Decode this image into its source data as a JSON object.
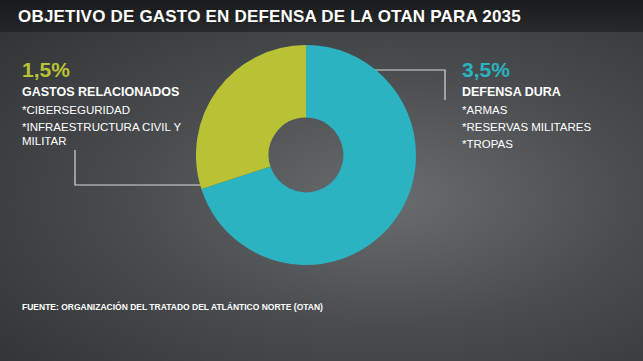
{
  "chart_data": {
    "type": "doughnut",
    "title": "OBJETIVO DE GASTO EN DEFENSA DE LA OTAN PARA 2035",
    "categories": [
      "DEFENSA DURA",
      "GASTOS RELACIONADOS"
    ],
    "values": [
      3.5,
      1.5
    ],
    "value_labels": [
      "3,5%",
      "1,5%"
    ],
    "colors": [
      "#2bb3c1",
      "#b9c234"
    ],
    "items": [
      [
        "*ARMAS",
        "*RESERVAS MILITARES",
        "*TROPAS"
      ],
      [
        "*CIBERSEGURIDAD",
        "*INFRAESTRUCTURA CIVIL Y MILITAR"
      ]
    ],
    "data_labels": true,
    "source": "FUENTE: ORGANIZACIÓN DEL TRATADO DEL ATLÁNTICO NORTE (OTAN)"
  }
}
